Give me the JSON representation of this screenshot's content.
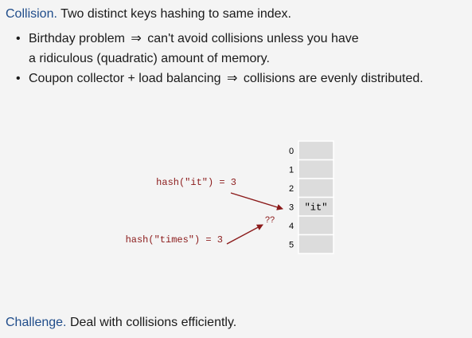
{
  "heading": {
    "keyword": "Collision.",
    "text": "Two distinct keys hashing to same index."
  },
  "bullets": [
    {
      "part1": "Birthday problem",
      "arrow": "⇒",
      "part2": "can't avoid collisions unless you have",
      "line2": "a ridiculous (quadratic) amount of memory."
    },
    {
      "part1": "Coupon collector + load balancing",
      "arrow": "⇒",
      "part2": "collisions are evenly distributed."
    }
  ],
  "diagram": {
    "table_indices": [
      "0",
      "1",
      "2",
      "3",
      "4",
      "5"
    ],
    "table_values": [
      "",
      "",
      "",
      "\"it\"",
      "",
      ""
    ],
    "hash_label_1": "hash(\"it\") = 3",
    "hash_label_2": "hash(\"times\") = 3",
    "collision_mark": "??",
    "arrow_color": "#8b1a1a",
    "label_color": "#8b1a1a",
    "cell_fill": "#dcdcdc"
  },
  "challenge": {
    "keyword": "Challenge.",
    "text": "Deal with collisions efficiently."
  }
}
